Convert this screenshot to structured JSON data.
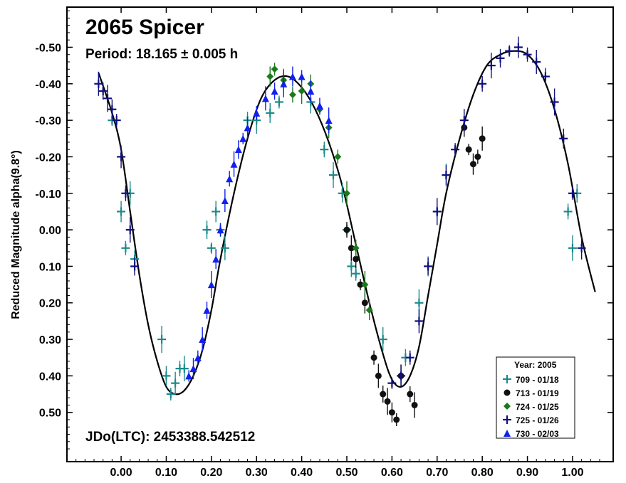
{
  "chart_data": {
    "type": "scatter",
    "title": "2065 Spicer",
    "subtitle": "Period: 18.165 ± 0.005 h",
    "annotation": "JDo(LTC): 2453388.542512",
    "ylabel": "Reduced Magnitude alpha(9.8°)",
    "xlabel": "",
    "xlim": [
      -0.12,
      1.09
    ],
    "ylim": [
      0.635,
      -0.61
    ],
    "y_inverted": true,
    "x_ticks": [
      0.0,
      0.1,
      0.2,
      0.3,
      0.4,
      0.5,
      0.6,
      0.7,
      0.8,
      0.9,
      1.0
    ],
    "x_tick_labels": [
      "0.00",
      "0.10",
      "0.20",
      "0.30",
      "0.40",
      "0.50",
      "0.60",
      "0.70",
      "0.80",
      "0.90",
      "1.00"
    ],
    "y_ticks": [
      -0.5,
      -0.4,
      -0.3,
      -0.2,
      -0.1,
      0.0,
      0.1,
      0.2,
      0.3,
      0.4,
      0.5
    ],
    "y_tick_labels": [
      "-0.50",
      "-0.40",
      "-0.30",
      "-0.20",
      "-0.10",
      "0.00",
      "0.10",
      "0.20",
      "0.30",
      "0.40",
      "0.50"
    ],
    "grid": false,
    "legend": {
      "title": "Year: 2005",
      "placement": "bottom-right",
      "entries": [
        {
          "label": "709 - 01/18",
          "marker": "plus",
          "color": "#1a8a8a"
        },
        {
          "label": "713 - 01/19",
          "marker": "circle",
          "color": "#111111"
        },
        {
          "label": "724 - 01/25",
          "marker": "diamond",
          "color": "#1a7a1a"
        },
        {
          "label": "725 - 01/26",
          "marker": "plus",
          "color": "#101080"
        },
        {
          "label": "730 - 02/03",
          "marker": "triangle",
          "color": "#1020ee"
        }
      ]
    },
    "fit_curve": {
      "x": [
        -0.05,
        -0.02,
        0.0,
        0.02,
        0.04,
        0.06,
        0.08,
        0.1,
        0.12,
        0.14,
        0.16,
        0.18,
        0.2,
        0.22,
        0.25,
        0.28,
        0.31,
        0.34,
        0.37,
        0.4,
        0.43,
        0.46,
        0.49,
        0.52,
        0.55,
        0.58,
        0.6,
        0.62,
        0.64,
        0.66,
        0.68,
        0.7,
        0.72,
        0.75,
        0.78,
        0.81,
        0.84,
        0.87,
        0.9,
        0.93,
        0.96,
        0.99,
        1.02,
        1.05
      ],
      "y": [
        -0.43,
        -0.32,
        -0.22,
        -0.05,
        0.12,
        0.26,
        0.36,
        0.43,
        0.45,
        0.44,
        0.4,
        0.33,
        0.22,
        0.08,
        -0.1,
        -0.25,
        -0.36,
        -0.41,
        -0.42,
        -0.39,
        -0.33,
        -0.24,
        -0.12,
        0.04,
        0.2,
        0.34,
        0.41,
        0.43,
        0.4,
        0.32,
        0.18,
        0.04,
        -0.1,
        -0.25,
        -0.37,
        -0.45,
        -0.48,
        -0.49,
        -0.48,
        -0.43,
        -0.33,
        -0.18,
        0.02,
        0.17
      ]
    },
    "series": [
      {
        "name": "709 - 01/18",
        "marker": "plus",
        "color": "#1a8a8a",
        "x": [
          -0.02,
          0.0,
          0.01,
          0.02,
          0.03,
          0.09,
          0.1,
          0.11,
          0.12,
          0.13,
          0.14,
          0.19,
          0.2,
          0.21,
          0.22,
          0.23,
          0.28,
          0.3,
          0.33,
          0.35,
          0.42,
          0.45,
          0.47,
          0.49,
          0.5,
          0.51,
          0.52,
          0.58,
          0.63,
          0.66,
          0.68,
          0.7,
          0.72,
          0.99,
          1.0,
          1.01
        ],
        "y": [
          -0.3,
          -0.05,
          0.05,
          -0.1,
          0.08,
          0.3,
          0.4,
          0.45,
          0.42,
          0.38,
          0.38,
          0.0,
          0.05,
          -0.05,
          0.0,
          0.05,
          -0.3,
          -0.3,
          -0.32,
          -0.35,
          -0.35,
          -0.22,
          -0.15,
          -0.1,
          0.0,
          0.1,
          0.12,
          0.3,
          0.35,
          0.2,
          0.1,
          -0.05,
          -0.15,
          -0.05,
          0.05,
          -0.1
        ]
      },
      {
        "name": "713 - 01/19",
        "marker": "circle",
        "color": "#111111",
        "x": [
          0.5,
          0.51,
          0.52,
          0.53,
          0.54,
          0.56,
          0.57,
          0.58,
          0.59,
          0.6,
          0.61,
          0.62,
          0.64,
          0.65,
          0.76,
          0.77,
          0.78,
          0.79,
          0.8
        ],
        "y": [
          0.0,
          0.05,
          0.08,
          0.15,
          0.2,
          0.35,
          0.4,
          0.45,
          0.47,
          0.5,
          0.52,
          0.4,
          0.45,
          0.48,
          -0.28,
          -0.22,
          -0.18,
          -0.2,
          -0.25
        ]
      },
      {
        "name": "724 - 01/25",
        "marker": "diamond",
        "color": "#1a7a1a",
        "x": [
          0.33,
          0.34,
          0.36,
          0.38,
          0.4,
          0.42,
          0.44,
          0.46,
          0.48,
          0.5,
          0.52,
          0.54,
          0.55
        ],
        "y": [
          -0.42,
          -0.44,
          -0.41,
          -0.37,
          -0.38,
          -0.4,
          -0.33,
          -0.28,
          -0.2,
          -0.1,
          0.05,
          0.15,
          0.22
        ]
      },
      {
        "name": "725 - 01/26",
        "marker": "plus",
        "color": "#101080",
        "x": [
          -0.05,
          -0.04,
          -0.03,
          -0.02,
          -0.01,
          0.0,
          0.01,
          0.02,
          0.03,
          0.6,
          0.62,
          0.64,
          0.66,
          0.68,
          0.7,
          0.72,
          0.74,
          0.76,
          0.8,
          0.82,
          0.84,
          0.86,
          0.88,
          0.9,
          0.92,
          0.94,
          0.96,
          0.98,
          1.0,
          1.02
        ],
        "y": [
          -0.4,
          -0.38,
          -0.36,
          -0.33,
          -0.3,
          -0.2,
          -0.1,
          0.0,
          0.1,
          0.42,
          0.4,
          0.35,
          0.25,
          0.1,
          -0.05,
          -0.15,
          -0.22,
          -0.3,
          -0.4,
          -0.45,
          -0.47,
          -0.49,
          -0.5,
          -0.48,
          -0.46,
          -0.42,
          -0.35,
          -0.25,
          -0.1,
          0.05
        ]
      },
      {
        "name": "730 - 02/03",
        "marker": "triangle",
        "color": "#1020ee",
        "x": [
          0.15,
          0.16,
          0.17,
          0.18,
          0.19,
          0.2,
          0.21,
          0.22,
          0.23,
          0.24,
          0.25,
          0.26,
          0.27,
          0.28,
          0.3,
          0.32,
          0.34,
          0.36,
          0.38,
          0.4,
          0.42,
          0.44,
          0.46
        ],
        "y": [
          0.4,
          0.38,
          0.35,
          0.3,
          0.22,
          0.15,
          0.08,
          0.0,
          -0.08,
          -0.14,
          -0.18,
          -0.22,
          -0.25,
          -0.28,
          -0.32,
          -0.36,
          -0.38,
          -0.4,
          -0.42,
          -0.42,
          -0.38,
          -0.34,
          -0.3
        ]
      }
    ]
  }
}
